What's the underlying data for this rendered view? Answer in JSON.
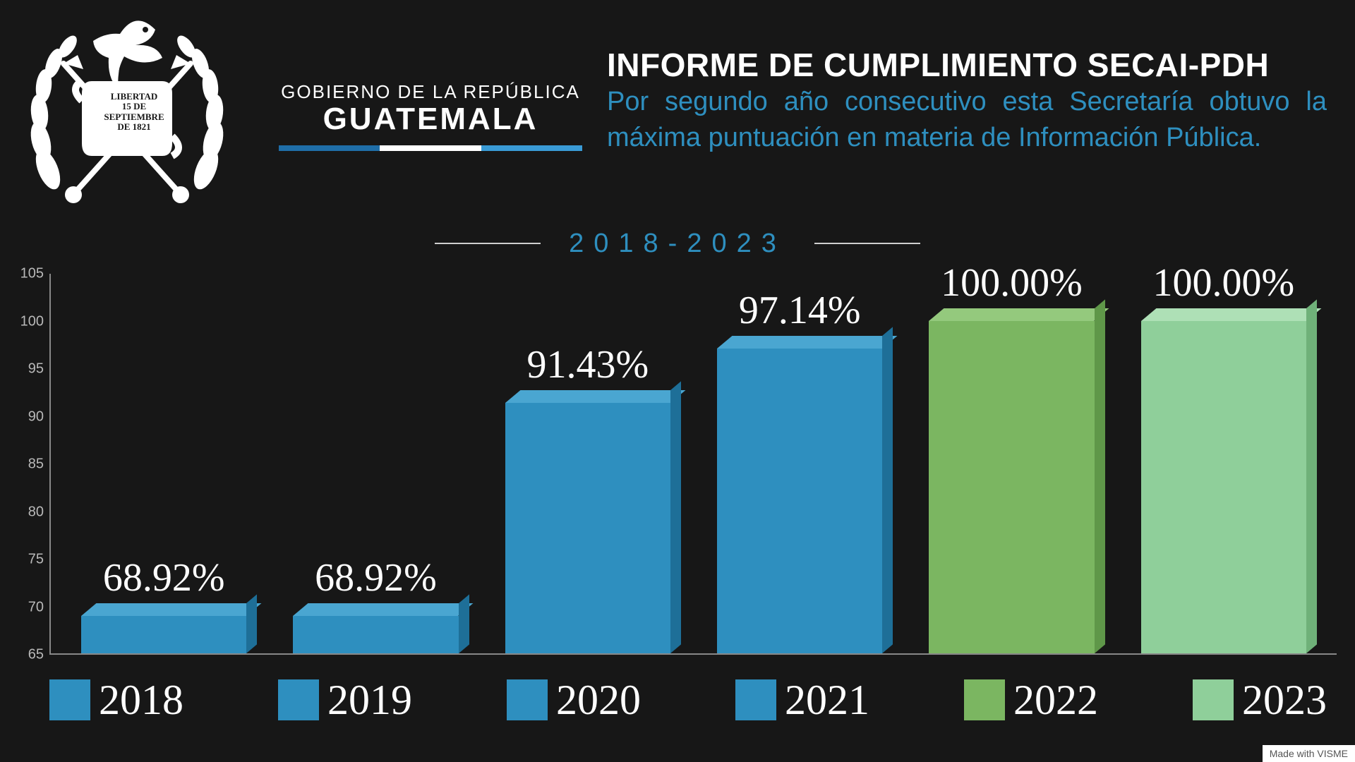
{
  "background_color": "#171717",
  "emblem": {
    "scroll_line1": "LIBERTAD",
    "scroll_line2": "15 DE",
    "scroll_line3": "SEPTIEMBRE",
    "scroll_line4": "DE 1821"
  },
  "gov": {
    "line1": "GOBIERNO DE LA REPÚBLICA",
    "line2": "GUATEMALA",
    "underline_colors": [
      "#1f6ea8",
      "#ffffff",
      "#3a9bd6"
    ]
  },
  "title": {
    "main": "INFORME DE CUMPLIMIENTO SECAI-PDH",
    "subtitle": "Por segundo año consecutivo esta Secretaría obtuvo la máxima puntuación en materia de Información Pública.",
    "subtitle_color": "#2e8fbf"
  },
  "range": {
    "text": "2018-2023",
    "color": "#2e8fbf"
  },
  "chart": {
    "type": "bar",
    "ymin": 65,
    "ymax": 105,
    "ytick_step": 5,
    "axis_color": "#888888",
    "tick_label_color": "#b9b9b9",
    "tick_fontsize": 20,
    "value_label_fontsize": 56,
    "value_label_color": "#ffffff",
    "bar_width_pct": 78,
    "series": [
      {
        "year": "2018",
        "value": 68.92,
        "label": "68.92%",
        "front": "#2e8fbf",
        "top": "#4aa6d1",
        "side": "#1e6f98"
      },
      {
        "year": "2019",
        "value": 68.92,
        "label": "68.92%",
        "front": "#2e8fbf",
        "top": "#4aa6d1",
        "side": "#1e6f98"
      },
      {
        "year": "2020",
        "value": 91.43,
        "label": "91.43%",
        "front": "#2e8fbf",
        "top": "#4aa6d1",
        "side": "#1e6f98"
      },
      {
        "year": "2021",
        "value": 97.14,
        "label": "97.14%",
        "front": "#2e8fbf",
        "top": "#4aa6d1",
        "side": "#1e6f98"
      },
      {
        "year": "2022",
        "value": 100.0,
        "label": "100.00%",
        "front": "#7bb661",
        "top": "#94c97d",
        "side": "#5f9749"
      },
      {
        "year": "2023",
        "value": 100.0,
        "label": "100.00%",
        "front": "#8fcf9a",
        "top": "#aee0b6",
        "side": "#6fb179"
      }
    ]
  },
  "legend_fontsize": 60,
  "watermark": "Made with VISME"
}
